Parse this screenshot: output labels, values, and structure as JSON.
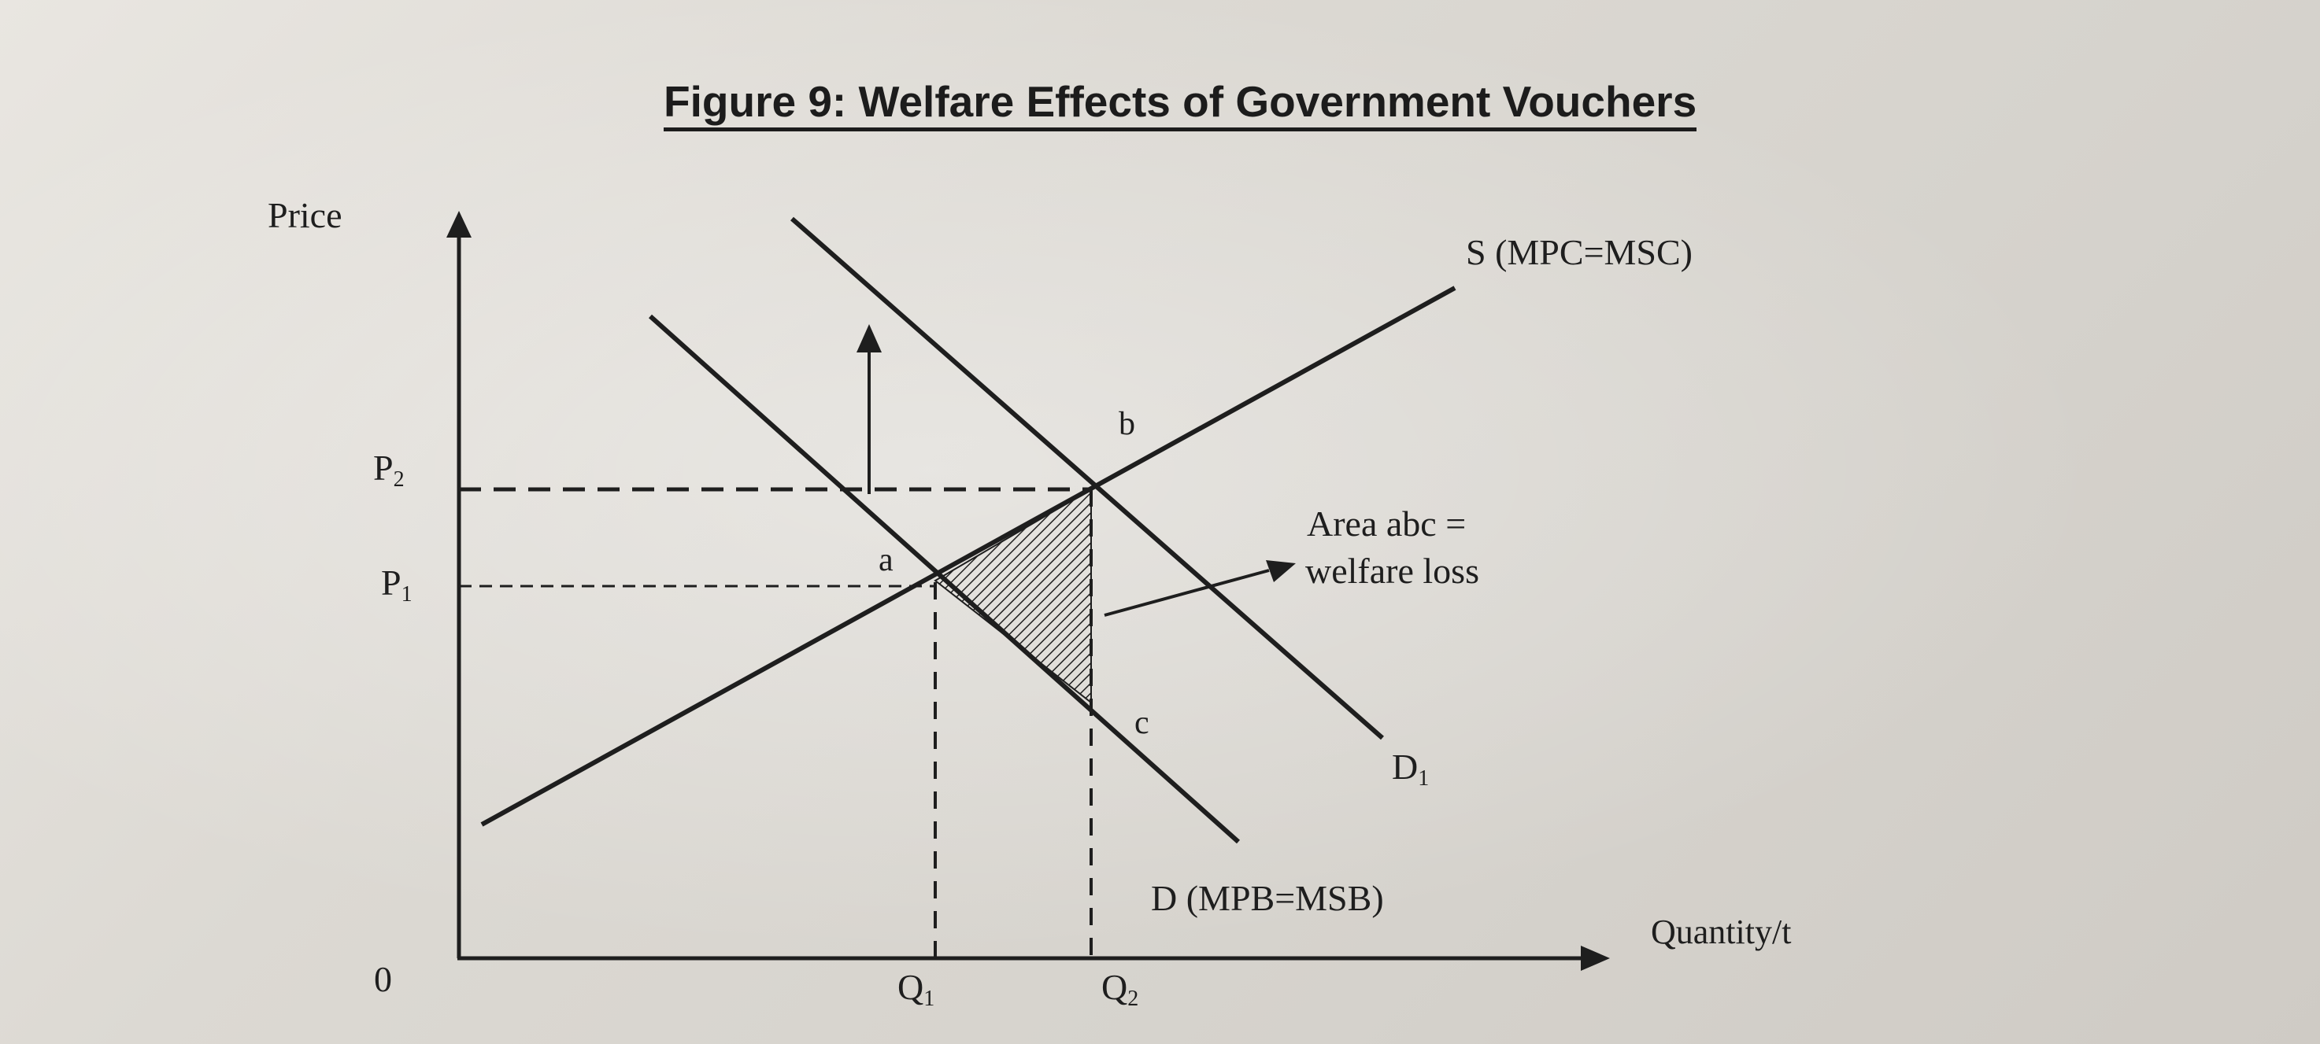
{
  "title": "Figure 9: Welfare Effects of Government Vouchers",
  "axes": {
    "y_label": "Price",
    "x_label": "Quantity/t",
    "origin": "0"
  },
  "curves": {
    "supply": "S (MPC=MSC)",
    "demand_original": "D (MPB=MSB)",
    "demand_new_main": "D",
    "demand_new_sub": "1"
  },
  "prices": {
    "p2_main": "P",
    "p2_sub": "2",
    "p1_main": "P",
    "p1_sub": "1"
  },
  "quantities": {
    "q1_main": "Q",
    "q1_sub": "1",
    "q2_main": "Q",
    "q2_sub": "2"
  },
  "points": {
    "a": "a",
    "b": "b",
    "c": "c"
  },
  "annotation": {
    "line1": "Area abc =",
    "line2": "welfare loss"
  },
  "colors": {
    "ink": "#1e1e1e",
    "paper": "#dedbd5"
  }
}
